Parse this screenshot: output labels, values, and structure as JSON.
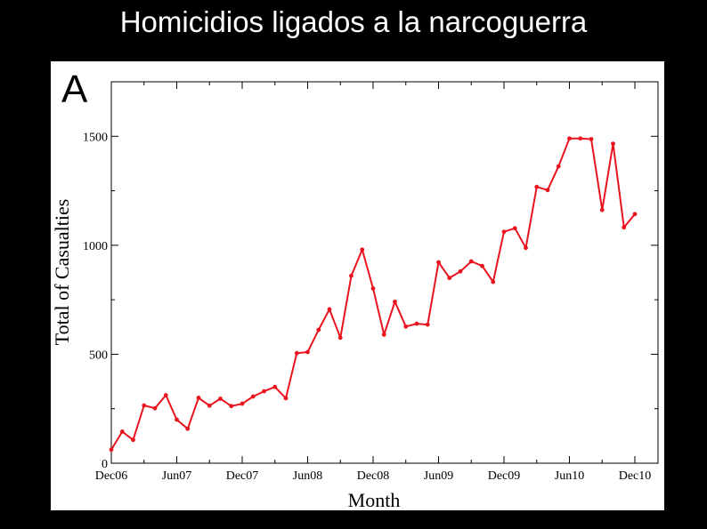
{
  "slide": {
    "title": "Homicidios ligados a la narcoguerra"
  },
  "colors": {
    "background": "#000000",
    "panel": "#ffffff",
    "series": "#e8141e"
  },
  "chart_data": {
    "type": "line",
    "panel_label": "A",
    "xlabel": "Month",
    "ylabel": "Total of Casualties",
    "ylim": [
      0,
      1750
    ],
    "yticks": [
      0,
      500,
      1000,
      1500
    ],
    "x_tick_labels": [
      "Dec06",
      "Jun07",
      "Dec07",
      "Jun08",
      "Dec08",
      "Jun09",
      "Dec09",
      "Jun10",
      "Dec10"
    ],
    "x": [
      "Dec06",
      "Jan07",
      "Feb07",
      "Mar07",
      "Apr07",
      "May07",
      "Jun07",
      "Jul07",
      "Aug07",
      "Sep07",
      "Oct07",
      "Nov07",
      "Dec07",
      "Jan08",
      "Feb08",
      "Mar08",
      "Apr08",
      "May08",
      "Jun08",
      "Jul08",
      "Aug08",
      "Sep08",
      "Oct08",
      "Nov08",
      "Dec08",
      "Jan09",
      "Feb09",
      "Mar09",
      "Apr09",
      "May09",
      "Jun09",
      "Jul09",
      "Aug09",
      "Sep09",
      "Oct09",
      "Nov09",
      "Dec09",
      "Jan10",
      "Feb10",
      "Mar10",
      "Apr10",
      "May10",
      "Jun10",
      "Jul10",
      "Aug10",
      "Sep10",
      "Oct10",
      "Nov10",
      "Dec10"
    ],
    "series": [
      {
        "values": [
          62,
          145,
          107,
          265,
          252,
          312,
          200,
          158,
          300,
          264,
          296,
          262,
          273,
          306,
          330,
          350,
          298,
          505,
          510,
          612,
          706,
          576,
          860,
          980,
          802,
          590,
          741,
          627,
          640,
          636,
          922,
          850,
          880,
          926,
          905,
          832,
          1062,
          1078,
          988,
          1268,
          1253,
          1362,
          1490,
          1490,
          1487,
          1162,
          1466,
          1082,
          1143
        ]
      }
    ]
  }
}
